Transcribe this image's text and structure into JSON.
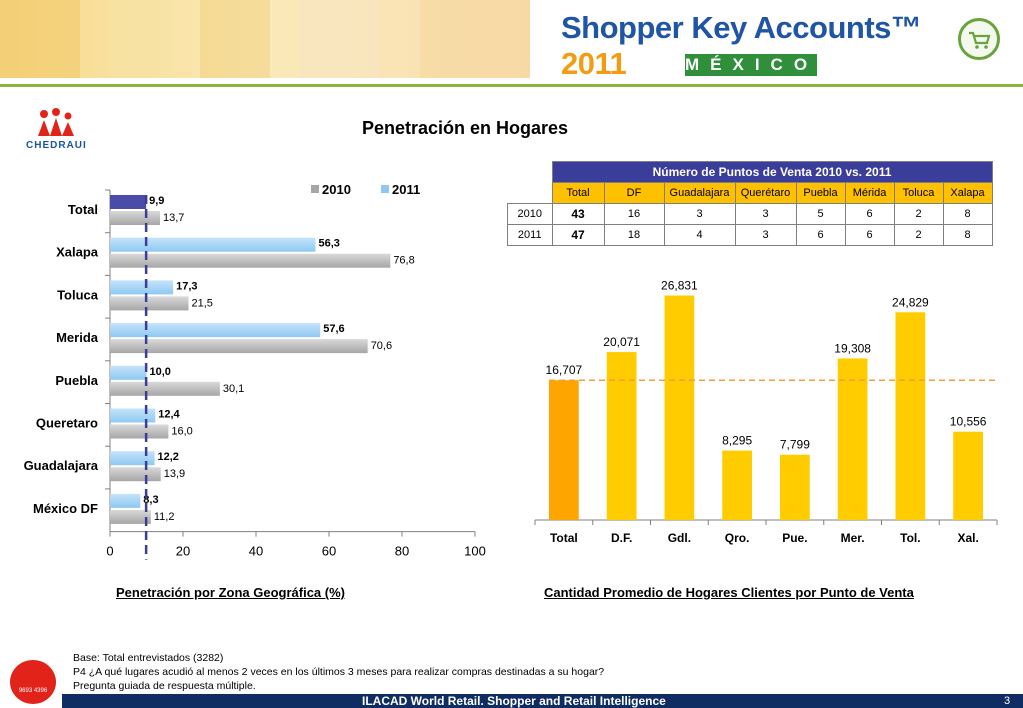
{
  "header": {
    "brand_title": "Shopper Key Accounts™",
    "brand_year": "2011",
    "brand_subtitle": "MÉXICO",
    "logo_text": "CHEDRAUI"
  },
  "page_title": "Penetración en Hogares",
  "table": {
    "title": "Número de Puntos de Venta 2010 vs. 2011",
    "columns": [
      "Total",
      "DF",
      "Guadalajara",
      "Querétaro",
      "Puebla",
      "Mérida",
      "Toluca",
      "Xalapa"
    ],
    "rows": [
      {
        "label": "2010",
        "values": [
          "43",
          "16",
          "3",
          "3",
          "5",
          "6",
          "2",
          "8"
        ]
      },
      {
        "label": "2011",
        "values": [
          "47",
          "18",
          "4",
          "3",
          "6",
          "6",
          "2",
          "8"
        ]
      }
    ]
  },
  "chart_data": [
    {
      "type": "bar",
      "orientation": "horizontal",
      "categories": [
        "Total",
        "Xalapa",
        "Toluca",
        "Merida",
        "Puebla",
        "Queretaro",
        "Guadalajara",
        "México DF"
      ],
      "series": [
        {
          "name": "2010",
          "values": [
            13.7,
            76.8,
            21.5,
            70.6,
            30.1,
            16.0,
            13.9,
            11.2
          ],
          "labels": [
            "13,7",
            "76,8",
            "21,5",
            "70,6",
            "30,1",
            "16,0",
            "13,9",
            "11,2"
          ]
        },
        {
          "name": "2011",
          "values": [
            9.9,
            56.3,
            17.3,
            57.6,
            10.0,
            12.4,
            12.2,
            8.3
          ],
          "labels": [
            "9,9",
            "56,3",
            "17,3",
            "57,6",
            "10,0",
            "12,4",
            "12,2",
            "8,3"
          ]
        }
      ],
      "xlim": [
        0,
        100
      ],
      "xticks": [
        "0",
        "20",
        "40",
        "60",
        "80",
        "100"
      ],
      "reference_line": 9.9,
      "legend": "top",
      "colors": {
        "2010": "#a6a6a6",
        "2011": "#8ec8f2",
        "highlight": "#4b4ba8"
      },
      "caption": "Penetración por Zona Geográfica (%)"
    },
    {
      "type": "bar",
      "categories": [
        "Total",
        "D.F.",
        "Gdl.",
        "Qro.",
        "Pue.",
        "Mer.",
        "Tol.",
        "Xal."
      ],
      "values": [
        16707,
        20071,
        26831,
        8295,
        7799,
        19308,
        24829,
        10556
      ],
      "labels": [
        "16,707",
        "20,071",
        "26,831",
        "8,295",
        "7,799",
        "19,308",
        "24,829",
        "10,556"
      ],
      "ylim": [
        0,
        30000
      ],
      "reference_line": 16707,
      "colors": {
        "total": "#ffa500",
        "bars": "#ffcc00",
        "reference": "#f39c42"
      },
      "caption": "Cantidad Promedio de Hogares Clientes por Punto de Venta"
    }
  ],
  "footnote": {
    "line1": "Base: Total entrevistados (3282)",
    "line2": "P4 ¿A qué lugares acudió al menos 2 veces en los últimos 3 meses para realizar compras destinadas a su hogar?",
    "line3": "Pregunta guiada de respuesta múltiple."
  },
  "footer": {
    "text": "ILACAD World Retail. Shopper and Retail Intelligence",
    "page": "3",
    "badge": "9693 4396"
  }
}
